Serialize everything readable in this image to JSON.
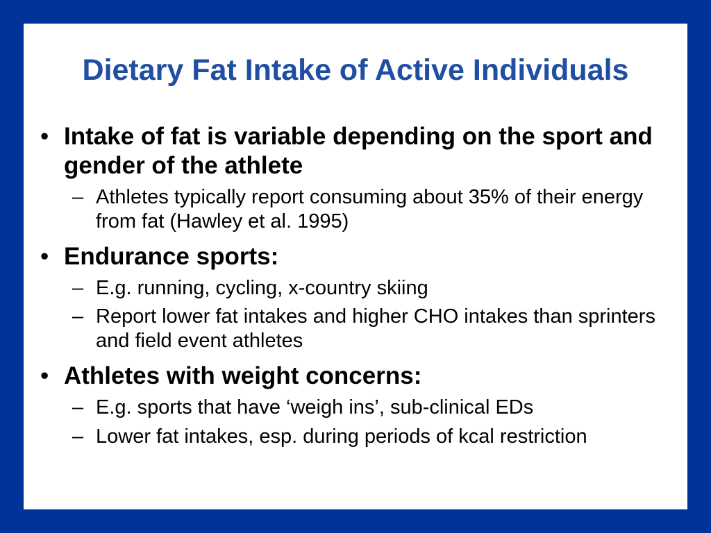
{
  "slide": {
    "title": "Dietary Fat Intake of Active Individuals",
    "bullet_glyph": "•",
    "dash_glyph": "–",
    "colors": {
      "frame": "#003399",
      "title": "#1f4ea3",
      "panel": "#ffffff",
      "text": "#000000"
    },
    "bullets": [
      {
        "text": "Intake of fat is variable depending on the sport and gender of the athlete",
        "subs": [
          "Athletes typically report consuming about 35% of their energy from fat (Hawley et al. 1995)"
        ]
      },
      {
        "text": "Endurance sports:",
        "subs": [
          "E.g. running, cycling, x-country skiing",
          "Report lower fat intakes and higher CHO intakes than sprinters and field event athletes"
        ]
      },
      {
        "text": "Athletes with weight concerns:",
        "subs": [
          "E.g. sports that have ‘weigh ins’, sub-clinical EDs",
          "Lower fat intakes, esp. during periods of kcal restriction"
        ]
      }
    ]
  }
}
